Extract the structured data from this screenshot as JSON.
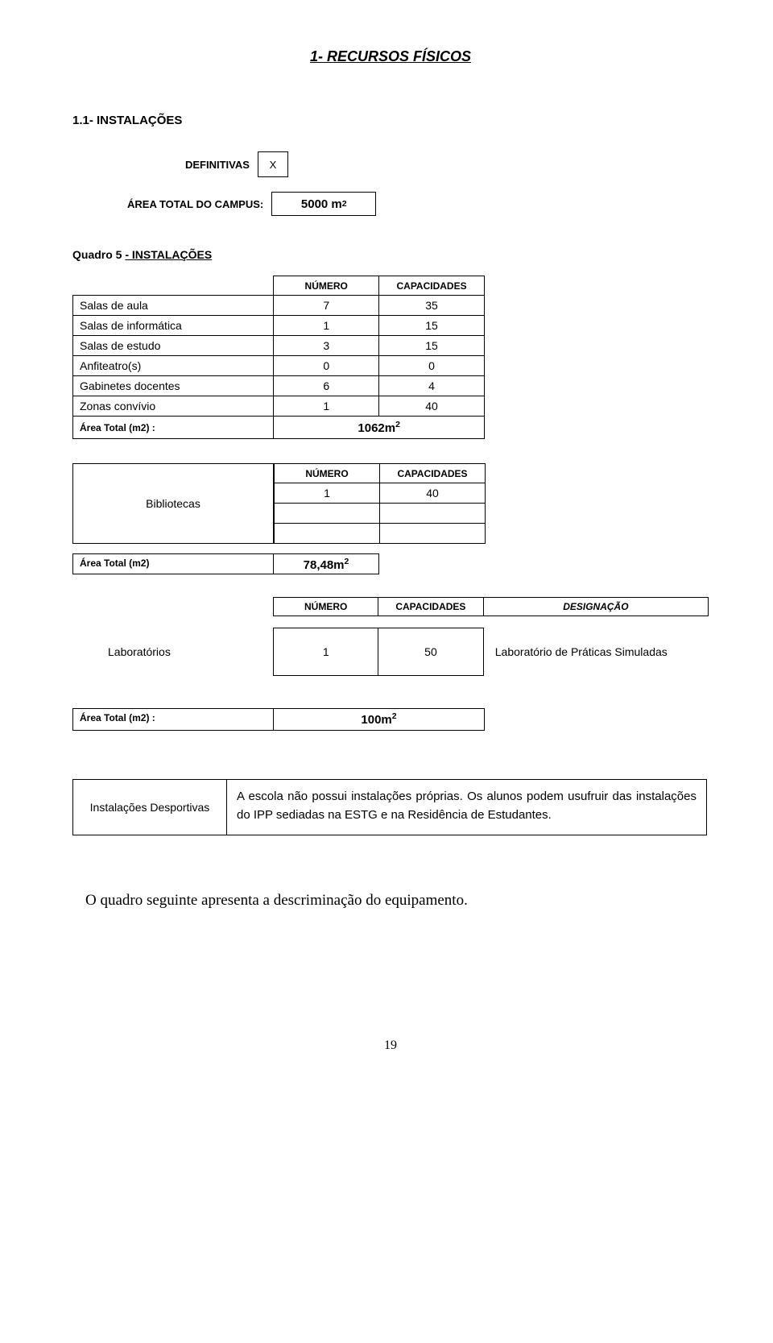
{
  "title": "1- RECURSOS FÍSICOS",
  "section": "1.1- INSTALAÇÕES",
  "definitivas": {
    "label": "DEFINITIVAS",
    "value": "X"
  },
  "area_campus": {
    "label": "ÁREA TOTAL DO CAMPUS:",
    "value": "5000 m",
    "sup": "2"
  },
  "quadro5": {
    "prefix": "Quadro 5 ",
    "underline": "- INSTALAÇÕES"
  },
  "headers": {
    "numero": "NÚMERO",
    "capacidades": "CAPACIDADES",
    "designacao": "DESIGNAÇÃO"
  },
  "instalacoes_rows": [
    {
      "label": "Salas de aula",
      "numero": "7",
      "cap": "35"
    },
    {
      "label": "Salas de informática",
      "numero": "1",
      "cap": "15"
    },
    {
      "label": "Salas de estudo",
      "numero": "3",
      "cap": "15"
    },
    {
      "label": "Anfiteatro(s)",
      "numero": "0",
      "cap": "0"
    },
    {
      "label": "Gabinetes docentes",
      "numero": "6",
      "cap": "4"
    },
    {
      "label": "Zonas convívio",
      "numero": "1",
      "cap": "40"
    }
  ],
  "area_total_label": "Área Total (m2) :",
  "area_total_label2": "Área Total (m2)",
  "area1": {
    "value": "1062m",
    "sup": "2"
  },
  "bibliotecas": {
    "label": "Bibliotecas",
    "numero": "1",
    "cap": "40"
  },
  "area2": {
    "value": "78,48m",
    "sup": "2"
  },
  "laboratorios": {
    "label": "Laboratórios",
    "numero": "1",
    "cap": "50",
    "desc": "Laboratório de Práticas Simuladas"
  },
  "area3": {
    "value": "100m",
    "sup": "2"
  },
  "sport": {
    "label": "Instalações Desportivas",
    "text": "A escola não possui instalações próprias. Os alunos podem usufruir das instalações do IPP sediadas na ESTG e na Residência de Estudantes."
  },
  "final": "O quadro seguinte apresenta a descriminação do equipamento.",
  "pagenum": "19"
}
